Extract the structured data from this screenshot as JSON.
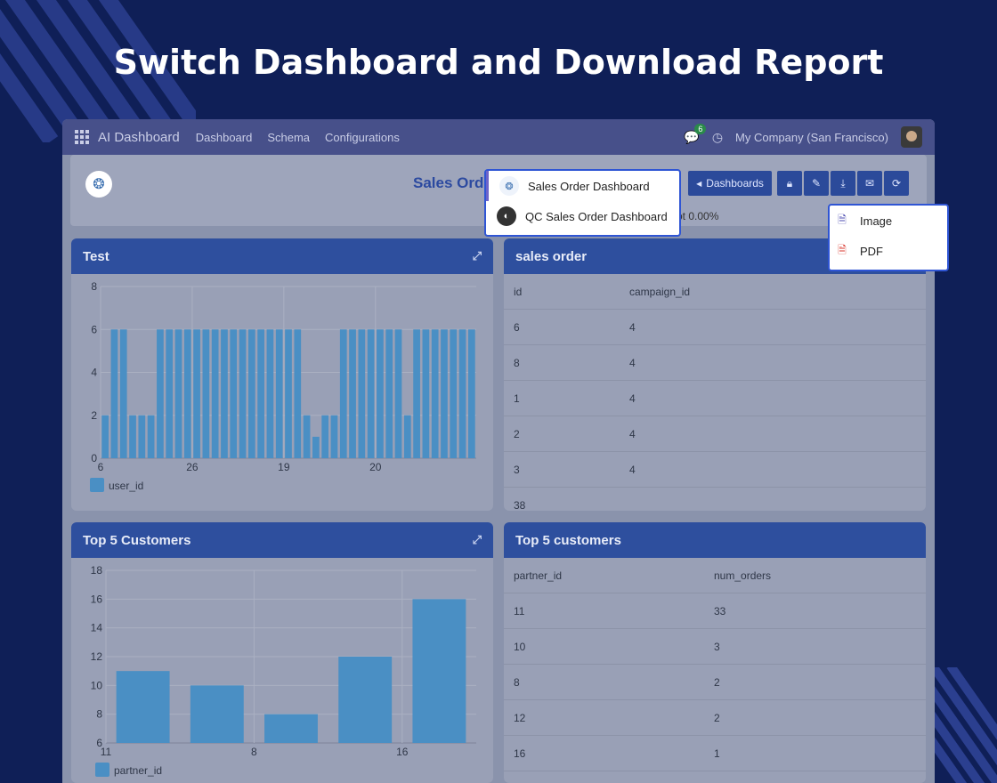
{
  "headline": "Switch Dashboard and Download Report",
  "topbar": {
    "brand": "AI Dashboard",
    "nav": [
      "Dashboard",
      "Schema",
      "Configurations"
    ],
    "chat_count": "6",
    "company": "My Company (San Francisco)"
  },
  "dashboard": {
    "title": "Sales Ord",
    "dashboards_button": "Dashboards",
    "percent_text": "ot 0.00%"
  },
  "dashboard_menu": {
    "items": [
      {
        "label": "Sales Order Dashboard"
      },
      {
        "label": "QC Sales Order Dashboard"
      }
    ]
  },
  "download_menu": {
    "items": [
      {
        "label": "Image"
      },
      {
        "label": "PDF"
      }
    ]
  },
  "panels": {
    "test": {
      "title": "Test"
    },
    "sales_order": {
      "title": "sales order",
      "columns": [
        "id",
        "campaign_id"
      ],
      "rows": [
        [
          "6",
          "4"
        ],
        [
          "8",
          "4"
        ],
        [
          "1",
          "4"
        ],
        [
          "2",
          "4"
        ],
        [
          "3",
          "4"
        ],
        [
          "38",
          ""
        ]
      ]
    },
    "top5_left": {
      "title": "Top 5 Customers"
    },
    "top5_right": {
      "title": "Top 5 customers",
      "columns": [
        "partner_id",
        "num_orders"
      ],
      "rows": [
        [
          "11",
          "33"
        ],
        [
          "10",
          "3"
        ],
        [
          "8",
          "2"
        ],
        [
          "12",
          "2"
        ],
        [
          "16",
          "1"
        ]
      ]
    }
  },
  "chart_data": [
    {
      "type": "bar",
      "ylim": [
        0,
        8
      ],
      "y_ticks": [
        0,
        2,
        4,
        6,
        8
      ],
      "x_tick_labels": [
        "6",
        "26",
        "19",
        "20"
      ],
      "series": [
        {
          "name": "user_id",
          "values": [
            2,
            6,
            6,
            2,
            2,
            2,
            6,
            6,
            6,
            6,
            6,
            6,
            6,
            6,
            6,
            6,
            6,
            6,
            6,
            6,
            6,
            6,
            2,
            1,
            2,
            2,
            6,
            6,
            6,
            6,
            6,
            6,
            6,
            2,
            6,
            6,
            6,
            6,
            6,
            6,
            6
          ]
        }
      ],
      "color": "#4a8fc4"
    },
    {
      "type": "bar",
      "ylim": [
        6,
        18
      ],
      "y_ticks": [
        6,
        8,
        10,
        12,
        14,
        16,
        18
      ],
      "x_tick_labels": [
        "11",
        "8",
        "16"
      ],
      "series": [
        {
          "name": "partner_id",
          "values": [
            11,
            10,
            8,
            12,
            16
          ]
        }
      ],
      "color": "#4a8fc4"
    }
  ]
}
